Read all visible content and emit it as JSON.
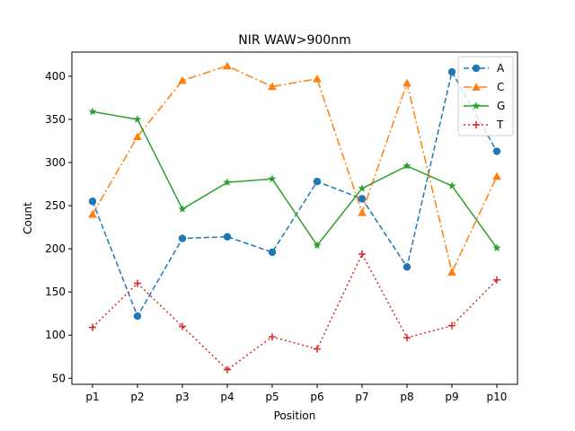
{
  "chart_data": {
    "type": "line",
    "title": "NIR WAW>900nm",
    "xlabel": "Position",
    "ylabel": "Count",
    "categories": [
      "p1",
      "p2",
      "p3",
      "p4",
      "p5",
      "p6",
      "p7",
      "p8",
      "p9",
      "p10"
    ],
    "ylim": [
      43,
      428
    ],
    "yticks": [
      50,
      100,
      150,
      200,
      250,
      300,
      350,
      400
    ],
    "grid": false,
    "legend_position": "top-right",
    "series": [
      {
        "name": "A",
        "color": "#1f77b4",
        "linestyle": "dashed",
        "marker": "circle",
        "values": [
          255,
          122,
          212,
          214,
          196,
          278,
          258,
          179,
          405,
          313
        ]
      },
      {
        "name": "C",
        "color": "#ff7f0e",
        "linestyle": "dashdot",
        "marker": "triangle",
        "values": [
          240,
          330,
          395,
          412,
          388,
          397,
          242,
          392,
          173,
          284
        ]
      },
      {
        "name": "G",
        "color": "#2ca02c",
        "linestyle": "solid",
        "marker": "star",
        "values": [
          359,
          350,
          246,
          277,
          281,
          204,
          270,
          296,
          273,
          201
        ]
      },
      {
        "name": "T",
        "color": "#d62728",
        "linestyle": "dotted",
        "marker": "plus",
        "values": [
          109,
          160,
          110,
          60,
          98,
          84,
          194,
          97,
          111,
          164
        ]
      }
    ]
  }
}
